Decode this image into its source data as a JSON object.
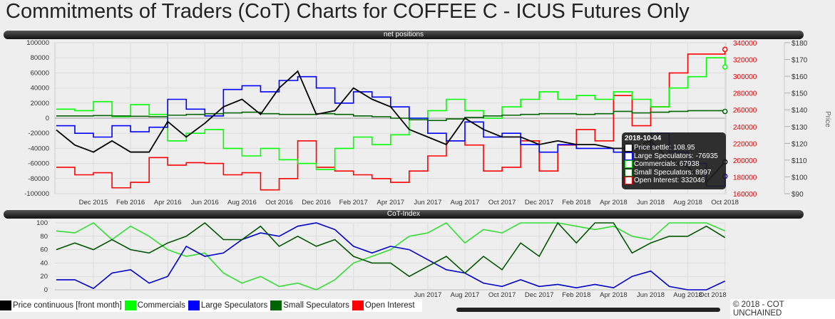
{
  "title": "Commitments of Traders (CoT) Charts for COFFEE C - ICUS Futures Only",
  "panels": {
    "top": "net positions",
    "bottom": "CoT-Index"
  },
  "tooltip": {
    "date": "2018-10-04",
    "rows": [
      {
        "label": "Price settle: 108.95",
        "color": "#000000"
      },
      {
        "label": "Large Speculators: -76935",
        "color": "#0000ff"
      },
      {
        "label": "Commercials: 67938",
        "color": "#00cc00"
      },
      {
        "label": "Small Speculators: 8997",
        "color": "#006400"
      },
      {
        "label": "Open Interest: 332046",
        "color": "#ff0000"
      }
    ]
  },
  "legend": [
    {
      "label": "Price continuous [front month]",
      "color": "#000000"
    },
    {
      "label": "Commercials",
      "color": "#00ff00"
    },
    {
      "label": "Large Speculators",
      "color": "#0000ff"
    },
    {
      "label": "Small Speculators",
      "color": "#006400"
    },
    {
      "label": "Open Interest",
      "color": "#ff0000"
    }
  ],
  "copyright": "© 2018 - COT UNCHAINED",
  "chart_data": [
    {
      "type": "line",
      "title": "net positions",
      "ylabel_right2": "Price",
      "x": [
        "2015-10",
        "2015-11",
        "2015-12",
        "2016-01",
        "2016-02",
        "2016-03",
        "2016-04",
        "2016-05",
        "2016-06",
        "2016-07",
        "2016-08",
        "2016-09",
        "2016-10",
        "2016-11",
        "2016-12",
        "2017-01",
        "2017-02",
        "2017-03",
        "2017-04",
        "2017-05",
        "2017-06",
        "2017-07",
        "2017-08",
        "2017-09",
        "2017-10",
        "2017-11",
        "2017-12",
        "2018-01",
        "2018-02",
        "2018-03",
        "2018-04",
        "2018-05",
        "2018-06",
        "2018-07",
        "2018-08",
        "2018-09",
        "2018-10"
      ],
      "xticks": [
        "Dec 2015",
        "Feb 2016",
        "Apr 2016",
        "Jun 2016",
        "Aug 2016",
        "Oct 2016",
        "Dec 2016",
        "Feb 2017",
        "Apr 2017",
        "Jun 2017",
        "Aug 2017",
        "Oct 2017",
        "Dec 2017",
        "Feb 2018",
        "Apr 2018",
        "Jun 2018",
        "Aug 2018",
        "Oct 2018"
      ],
      "ylim": [
        -100000,
        100000
      ],
      "yticks": [
        100000,
        80000,
        60000,
        40000,
        20000,
        0,
        -20000,
        -40000,
        -60000,
        -80000,
        -100000
      ],
      "oi_ylim": [
        160000,
        340000
      ],
      "oi_ticks": [
        340000,
        320000,
        300000,
        280000,
        260000,
        240000,
        220000,
        200000,
        180000,
        160000
      ],
      "price_ylim": [
        90,
        180
      ],
      "price_ticks": [
        "$180",
        "$170",
        "$160",
        "$150",
        "$140",
        "$130",
        "$120",
        "$110",
        "$100",
        "$90"
      ],
      "series": [
        {
          "name": "Large Speculators",
          "axis": "left",
          "color": "#0000ff",
          "values": [
            -10000,
            -20000,
            -25000,
            -10000,
            -18000,
            -12000,
            25000,
            12000,
            3000,
            38000,
            43000,
            35000,
            50000,
            55000,
            40000,
            20000,
            35000,
            28000,
            15000,
            0,
            -20000,
            -30000,
            -5000,
            -25000,
            -20000,
            -35000,
            -45000,
            -35000,
            -40000,
            -40000,
            -45000,
            -40000,
            -20000,
            -45000,
            -60000,
            -90000,
            -76935
          ]
        },
        {
          "name": "Commercials",
          "axis": "left",
          "color": "#00ff00",
          "values": [
            12000,
            10000,
            22000,
            2000,
            18000,
            5000,
            -30000,
            -20000,
            -15000,
            -40000,
            -50000,
            -40000,
            -55000,
            -60000,
            -68000,
            -40000,
            -25000,
            -35000,
            -22000,
            0,
            10000,
            25000,
            10000,
            0,
            15000,
            25000,
            35000,
            25000,
            30000,
            25000,
            35000,
            25000,
            15000,
            40000,
            55000,
            80000,
            67938
          ]
        },
        {
          "name": "Small Speculators",
          "axis": "left",
          "color": "#006400",
          "values": [
            3000,
            3000,
            3500,
            3000,
            2500,
            2000,
            4000,
            5000,
            6000,
            7000,
            8000,
            6000,
            5000,
            5000,
            6000,
            5000,
            3000,
            2000,
            0,
            -2000,
            -3000,
            -1000,
            1000,
            3000,
            4000,
            5000,
            6000,
            6000,
            5000,
            6000,
            9000,
            7000,
            8000,
            9000,
            10000,
            10000,
            8997
          ]
        },
        {
          "name": "Open Interest",
          "axis": "oi",
          "color": "#ff0000",
          "values": [
            191500,
            182500,
            185000,
            167000,
            173500,
            203000,
            194000,
            197000,
            196000,
            182500,
            185000,
            164500,
            178000,
            223000,
            191500,
            187000,
            182500,
            178000,
            173500,
            187000,
            205000,
            223000,
            218000,
            187000,
            191500,
            223000,
            187000,
            218000,
            236500,
            223000,
            277000,
            241000,
            263500,
            304000,
            326500,
            326500,
            332046
          ]
        },
        {
          "name": "Price continuous [front month]",
          "axis": "price",
          "color": "#000000",
          "values": [
            128,
            119,
            114.8,
            121.5,
            114.8,
            114.8,
            133,
            123.8,
            132,
            141.8,
            146.3,
            137.3,
            153,
            163,
            137.3,
            139.5,
            153,
            146.3,
            141.8,
            128.3,
            123.8,
            119.3,
            135,
            128.3,
            123.8,
            123.8,
            119.3,
            121.5,
            119.3,
            119.3,
            117,
            117,
            121.5,
            110.3,
            105.8,
            96.8,
            108.95
          ]
        }
      ]
    },
    {
      "type": "line",
      "title": "CoT-Index",
      "ylim": [
        0,
        100
      ],
      "yticks": [
        100,
        80,
        60,
        40,
        20,
        0
      ],
      "xticks": [
        "Jun 2017",
        "Aug 2017",
        "Oct 2017",
        "Dec 2017",
        "Feb 2018",
        "Apr 2018",
        "Jun 2018",
        "Aug 2018",
        "Oct 2018"
      ],
      "series": [
        {
          "name": "Commercials",
          "color": "#33dd33",
          "values": [
            88,
            85,
            100,
            75,
            95,
            80,
            60,
            50,
            55,
            25,
            10,
            20,
            5,
            10,
            0,
            15,
            40,
            50,
            60,
            80,
            85,
            100,
            70,
            90,
            85,
            100,
            100,
            100,
            95,
            90,
            95,
            80,
            75,
            100,
            100,
            100,
            88
          ]
        },
        {
          "name": "Large Speculators",
          "color": "#0000cc",
          "values": [
            15,
            15,
            2,
            25,
            30,
            10,
            20,
            65,
            50,
            55,
            75,
            85,
            80,
            95,
            100,
            90,
            65,
            55,
            65,
            60,
            45,
            30,
            25,
            10,
            5,
            15,
            5,
            8,
            3,
            8,
            3,
            20,
            28,
            5,
            0,
            0,
            13
          ]
        },
        {
          "name": "Small Speculators",
          "color": "#005500",
          "values": [
            60,
            70,
            60,
            75,
            60,
            55,
            70,
            80,
            100,
            75,
            75,
            95,
            65,
            80,
            65,
            75,
            50,
            40,
            40,
            20,
            35,
            50,
            25,
            50,
            30,
            70,
            50,
            100,
            70,
            100,
            100,
            55,
            70,
            80,
            80,
            95,
            78
          ]
        }
      ]
    }
  ]
}
